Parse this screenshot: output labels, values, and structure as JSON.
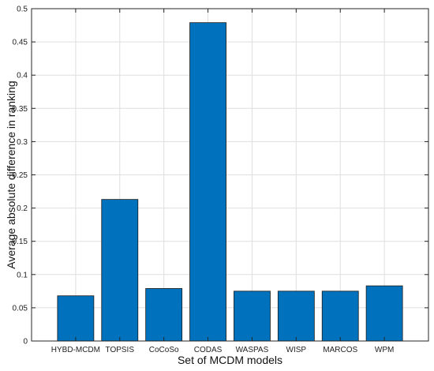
{
  "chart_data": {
    "type": "bar",
    "title": "",
    "xlabel": "Set of MCDM models",
    "ylabel": "Average absolute difference in ranking",
    "categories": [
      "HYBD-MCDM",
      "TOPSIS",
      "CoCoSo",
      "CODAS",
      "WASPAS",
      "WISP",
      "MARCOS",
      "WPM"
    ],
    "values": [
      0.068,
      0.213,
      0.079,
      0.479,
      0.075,
      0.075,
      0.075,
      0.083
    ],
    "ylim": [
      0,
      0.5
    ],
    "yticks": [
      "0",
      "0.05",
      "0.1",
      "0.15",
      "0.2",
      "0.25",
      "0.3",
      "0.35",
      "0.4",
      "0.45",
      "0.5"
    ],
    "grid": true,
    "bar_color": "#0072BD",
    "bar_edge_color": "#1a1a1a",
    "grid_color": "#dfdfdf",
    "axis_color": "#262626"
  }
}
